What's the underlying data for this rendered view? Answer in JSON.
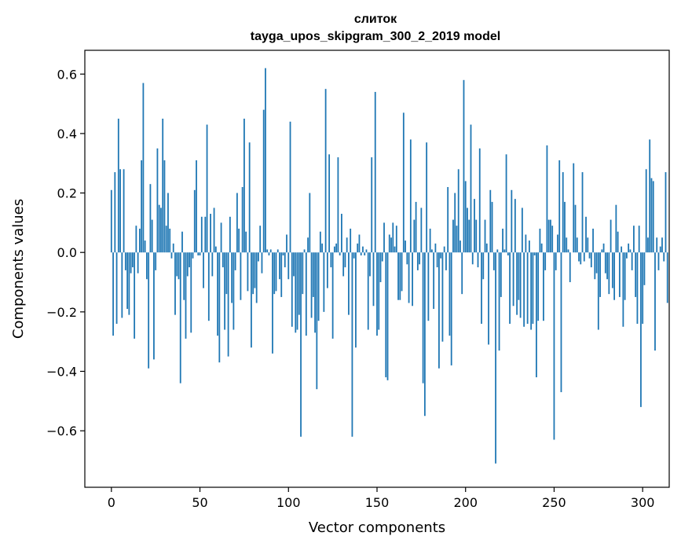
{
  "chart_data": {
    "type": "bar",
    "title": "слиток",
    "subtitle": "tayga_upos_skipgram_300_2_2019 model",
    "xlabel": "Vector components",
    "ylabel": "Components values",
    "xlim": [
      -15,
      315
    ],
    "ylim": [
      -0.79,
      0.68
    ],
    "xticks": [
      0,
      50,
      100,
      150,
      200,
      250,
      300
    ],
    "yticks": [
      -0.6,
      -0.4,
      -0.2,
      0.0,
      0.2,
      0.4,
      0.6
    ],
    "yticklabels": [
      "−0.6",
      "−0.4",
      "−0.2",
      "0.0",
      "0.2",
      "0.4",
      "0.6"
    ],
    "bar_color": "#1f77b4",
    "grid": false,
    "values": [
      0.21,
      -0.28,
      0.27,
      -0.24,
      0.45,
      0.28,
      -0.22,
      0.28,
      -0.06,
      -0.19,
      -0.21,
      -0.07,
      -0.05,
      -0.29,
      0.09,
      -0.07,
      0.08,
      0.31,
      0.57,
      0.04,
      -0.09,
      -0.39,
      0.23,
      0.11,
      -0.36,
      -0.06,
      0.35,
      0.16,
      0.15,
      0.45,
      0.31,
      0.09,
      0.2,
      0.08,
      -0.02,
      0.03,
      -0.21,
      -0.08,
      -0.09,
      -0.44,
      0.07,
      -0.16,
      -0.29,
      -0.08,
      -0.05,
      -0.27,
      -0.02,
      0.21,
      0.31,
      -0.01,
      -0.01,
      0.12,
      -0.12,
      0.12,
      0.43,
      -0.23,
      0.13,
      -0.08,
      0.15,
      0.02,
      -0.28,
      -0.37,
      0.1,
      -0.05,
      -0.26,
      -0.14,
      -0.35,
      0.12,
      -0.17,
      -0.26,
      -0.06,
      0.2,
      0.08,
      -0.16,
      0.22,
      0.45,
      0.07,
      -0.13,
      0.37,
      -0.32,
      -0.14,
      -0.12,
      -0.17,
      -0.03,
      0.09,
      -0.07,
      0.48,
      0.62,
      0.01,
      -0.01,
      0.01,
      -0.34,
      -0.14,
      -0.13,
      0.01,
      -0.09,
      -0.15,
      -0.01,
      -0.05,
      0.06,
      -0.09,
      0.44,
      -0.25,
      -0.08,
      -0.27,
      -0.26,
      -0.21,
      -0.62,
      -0.14,
      0.01,
      -0.28,
      0.05,
      0.2,
      -0.22,
      -0.15,
      -0.27,
      -0.46,
      -0.23,
      0.07,
      0.03,
      -0.2,
      0.55,
      -0.12,
      0.33,
      -0.05,
      -0.29,
      0.02,
      0.03,
      0.32,
      -0.01,
      0.13,
      -0.08,
      -0.05,
      0.05,
      -0.21,
      0.08,
      -0.62,
      -0.02,
      -0.32,
      0.03,
      0.06,
      -0.01,
      0.02,
      -0.01,
      0.01,
      -0.26,
      -0.08,
      0.32,
      -0.18,
      0.54,
      -0.28,
      -0.26,
      -0.1,
      -0.03,
      0.1,
      -0.42,
      -0.43,
      0.06,
      0.05,
      0.1,
      0.02,
      0.09,
      -0.16,
      -0.16,
      -0.13,
      0.47,
      0.04,
      -0.04,
      -0.17,
      0.38,
      -0.18,
      0.11,
      0.17,
      -0.06,
      -0.04,
      0.15,
      -0.44,
      -0.55,
      0.37,
      -0.23,
      0.08,
      0.01,
      -0.19,
      0.03,
      -0.05,
      -0.39,
      -0.02,
      -0.3,
      0.02,
      -0.06,
      0.22,
      -0.28,
      -0.38,
      0.11,
      0.2,
      0.09,
      0.28,
      0.04,
      -0.14,
      0.58,
      0.24,
      0.15,
      0.11,
      0.43,
      -0.04,
      0.18,
      0.11,
      -0.05,
      0.35,
      -0.24,
      -0.09,
      0.11,
      0.03,
      -0.31,
      0.21,
      0.17,
      -0.06,
      -0.71,
      0.01,
      -0.33,
      -0.15,
      0.08,
      0.01,
      0.33,
      -0.01,
      -0.24,
      0.21,
      -0.18,
      0.18,
      -0.21,
      -0.16,
      -0.22,
      0.15,
      -0.25,
      0.06,
      -0.24,
      0.04,
      -0.26,
      -0.24,
      -0.01,
      -0.42,
      -0.23,
      0.08,
      0.03,
      -0.23,
      -0.06,
      0.36,
      0.11,
      0.11,
      0.09,
      -0.63,
      -0.06,
      0.06,
      0.31,
      -0.47,
      0.27,
      0.17,
      0.05,
      0.01,
      -0.1,
      0.0,
      0.3,
      0.16,
      0.05,
      -0.03,
      -0.04,
      0.27,
      -0.03,
      0.12,
      0.05,
      -0.02,
      -0.05,
      0.08,
      -0.09,
      -0.07,
      -0.26,
      -0.15,
      0.01,
      0.03,
      -0.07,
      -0.09,
      -0.14,
      0.11,
      -0.12,
      -0.16,
      0.16,
      0.07,
      -0.15,
      0.02,
      -0.25,
      -0.16,
      -0.02,
      0.03,
      0.01,
      -0.06,
      0.09,
      -0.15,
      -0.24,
      0.09,
      -0.52,
      -0.24,
      -0.11,
      0.28,
      0.05,
      0.38,
      0.25,
      0.24,
      -0.33,
      0.05,
      -0.06,
      0.02,
      0.05,
      -0.03,
      0.27,
      -0.17
    ]
  }
}
